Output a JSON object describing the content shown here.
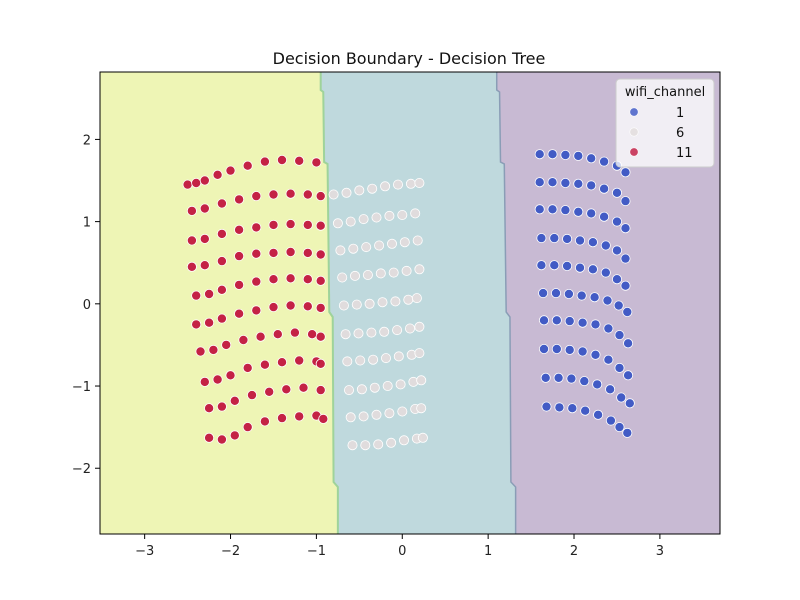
{
  "chart_data": {
    "type": "scatter",
    "title": "Decision Boundary - Decision Tree",
    "xlabel": "",
    "ylabel": "",
    "xlim": [
      -3.52,
      3.7
    ],
    "ylim": [
      -2.8,
      2.82
    ],
    "xticks": [
      -3,
      -2,
      -1,
      0,
      1,
      2,
      3
    ],
    "yticks": [
      -2,
      -1,
      0,
      1,
      2
    ],
    "xtick_labels": [
      "−3",
      "−2",
      "−1",
      "0",
      "1",
      "2",
      "3"
    ],
    "ytick_labels": [
      "−2",
      "−1",
      "0",
      "1",
      "2"
    ],
    "grid": false,
    "legend": {
      "title": "wifi_channel",
      "placement": "top-right",
      "entries": [
        "1",
        "6",
        "11"
      ]
    },
    "decision_regions": [
      {
        "class": "11",
        "color": "#eef5b5",
        "x_from": -3.52,
        "boundary_x_top": -0.95,
        "boundary_x_bottom": -0.75
      },
      {
        "class": "6",
        "color": "#bfd9dd",
        "boundary_x_top": 1.1,
        "boundary_x_bottom": 1.32
      },
      {
        "class": "1",
        "color": "#c8bad3",
        "x_to": 3.7
      }
    ],
    "series": [
      {
        "name": "11",
        "color": "#c1163f",
        "points": [
          [
            -2.5,
            1.45
          ],
          [
            -2.4,
            1.47
          ],
          [
            -2.3,
            1.5
          ],
          [
            -2.15,
            1.57
          ],
          [
            -2.0,
            1.62
          ],
          [
            -1.8,
            1.68
          ],
          [
            -1.6,
            1.73
          ],
          [
            -1.4,
            1.75
          ],
          [
            -1.2,
            1.74
          ],
          [
            -1.0,
            1.72
          ],
          [
            -2.45,
            1.13
          ],
          [
            -2.3,
            1.16
          ],
          [
            -2.1,
            1.22
          ],
          [
            -1.9,
            1.27
          ],
          [
            -1.7,
            1.31
          ],
          [
            -1.5,
            1.33
          ],
          [
            -1.3,
            1.34
          ],
          [
            -1.1,
            1.33
          ],
          [
            -0.95,
            1.31
          ],
          [
            -2.45,
            0.77
          ],
          [
            -2.3,
            0.79
          ],
          [
            -2.1,
            0.85
          ],
          [
            -1.9,
            0.9
          ],
          [
            -1.7,
            0.93
          ],
          [
            -1.5,
            0.96
          ],
          [
            -1.3,
            0.97
          ],
          [
            -1.1,
            0.96
          ],
          [
            -0.95,
            0.95
          ],
          [
            -2.45,
            0.45
          ],
          [
            -2.3,
            0.47
          ],
          [
            -2.1,
            0.52
          ],
          [
            -1.9,
            0.58
          ],
          [
            -1.7,
            0.61
          ],
          [
            -1.5,
            0.62
          ],
          [
            -1.3,
            0.63
          ],
          [
            -1.1,
            0.62
          ],
          [
            -0.95,
            0.6
          ],
          [
            -2.4,
            0.1
          ],
          [
            -2.25,
            0.12
          ],
          [
            -2.1,
            0.17
          ],
          [
            -1.9,
            0.23
          ],
          [
            -1.7,
            0.27
          ],
          [
            -1.5,
            0.3
          ],
          [
            -1.3,
            0.31
          ],
          [
            -1.1,
            0.3
          ],
          [
            -0.95,
            0.28
          ],
          [
            -2.4,
            -0.25
          ],
          [
            -2.25,
            -0.23
          ],
          [
            -2.1,
            -0.18
          ],
          [
            -1.9,
            -0.12
          ],
          [
            -1.7,
            -0.08
          ],
          [
            -1.5,
            -0.04
          ],
          [
            -1.3,
            -0.02
          ],
          [
            -1.1,
            -0.03
          ],
          [
            -0.95,
            -0.05
          ],
          [
            -2.35,
            -0.58
          ],
          [
            -2.2,
            -0.56
          ],
          [
            -2.05,
            -0.5
          ],
          [
            -1.85,
            -0.44
          ],
          [
            -1.65,
            -0.4
          ],
          [
            -1.45,
            -0.37
          ],
          [
            -1.25,
            -0.35
          ],
          [
            -1.05,
            -0.37
          ],
          [
            -0.95,
            -0.4
          ],
          [
            -2.3,
            -0.95
          ],
          [
            -2.15,
            -0.92
          ],
          [
            -2.0,
            -0.87
          ],
          [
            -1.8,
            -0.78
          ],
          [
            -1.6,
            -0.74
          ],
          [
            -1.4,
            -0.71
          ],
          [
            -1.2,
            -0.69
          ],
          [
            -1.0,
            -0.7
          ],
          [
            -0.95,
            -0.73
          ],
          [
            -2.25,
            -1.27
          ],
          [
            -2.1,
            -1.25
          ],
          [
            -1.95,
            -1.18
          ],
          [
            -1.75,
            -1.11
          ],
          [
            -1.55,
            -1.07
          ],
          [
            -1.35,
            -1.04
          ],
          [
            -1.15,
            -1.02
          ],
          [
            -0.95,
            -1.05
          ],
          [
            -2.25,
            -1.63
          ],
          [
            -2.1,
            -1.65
          ],
          [
            -1.95,
            -1.6
          ],
          [
            -1.8,
            -1.5
          ],
          [
            -1.6,
            -1.43
          ],
          [
            -1.4,
            -1.39
          ],
          [
            -1.2,
            -1.37
          ],
          [
            -1.0,
            -1.36
          ],
          [
            -0.92,
            -1.4
          ]
        ]
      },
      {
        "name": "6",
        "color": "#e2dcdc",
        "points": [
          [
            -0.8,
            1.33
          ],
          [
            -0.65,
            1.35
          ],
          [
            -0.5,
            1.38
          ],
          [
            -0.35,
            1.4
          ],
          [
            -0.2,
            1.43
          ],
          [
            -0.05,
            1.45
          ],
          [
            0.1,
            1.46
          ],
          [
            0.2,
            1.47
          ],
          [
            -0.75,
            0.98
          ],
          [
            -0.6,
            1.0
          ],
          [
            -0.45,
            1.03
          ],
          [
            -0.3,
            1.05
          ],
          [
            -0.15,
            1.07
          ],
          [
            0.0,
            1.08
          ],
          [
            0.15,
            1.1
          ],
          [
            -0.72,
            0.65
          ],
          [
            -0.57,
            0.67
          ],
          [
            -0.42,
            0.69
          ],
          [
            -0.27,
            0.71
          ],
          [
            -0.12,
            0.73
          ],
          [
            0.03,
            0.75
          ],
          [
            0.18,
            0.77
          ],
          [
            -0.7,
            0.32
          ],
          [
            -0.55,
            0.34
          ],
          [
            -0.4,
            0.35
          ],
          [
            -0.25,
            0.37
          ],
          [
            -0.1,
            0.38
          ],
          [
            0.05,
            0.4
          ],
          [
            0.2,
            0.42
          ],
          [
            -0.68,
            -0.02
          ],
          [
            -0.53,
            -0.01
          ],
          [
            -0.38,
            0.0
          ],
          [
            -0.23,
            0.02
          ],
          [
            -0.08,
            0.03
          ],
          [
            0.07,
            0.05
          ],
          [
            0.17,
            0.07
          ],
          [
            -0.66,
            -0.37
          ],
          [
            -0.51,
            -0.36
          ],
          [
            -0.36,
            -0.35
          ],
          [
            -0.21,
            -0.34
          ],
          [
            -0.06,
            -0.32
          ],
          [
            0.09,
            -0.3
          ],
          [
            0.2,
            -0.28
          ],
          [
            -0.64,
            -0.7
          ],
          [
            -0.49,
            -0.69
          ],
          [
            -0.34,
            -0.68
          ],
          [
            -0.19,
            -0.66
          ],
          [
            -0.04,
            -0.64
          ],
          [
            0.11,
            -0.62
          ],
          [
            0.2,
            -0.6
          ],
          [
            -0.62,
            -1.05
          ],
          [
            -0.47,
            -1.04
          ],
          [
            -0.32,
            -1.02
          ],
          [
            -0.17,
            -1.0
          ],
          [
            -0.02,
            -0.98
          ],
          [
            0.13,
            -0.95
          ],
          [
            0.22,
            -0.93
          ],
          [
            -0.6,
            -1.38
          ],
          [
            -0.45,
            -1.37
          ],
          [
            -0.3,
            -1.35
          ],
          [
            -0.15,
            -1.33
          ],
          [
            0.0,
            -1.31
          ],
          [
            0.15,
            -1.28
          ],
          [
            0.22,
            -1.27
          ],
          [
            -0.58,
            -1.72
          ],
          [
            -0.43,
            -1.72
          ],
          [
            -0.28,
            -1.71
          ],
          [
            -0.13,
            -1.69
          ],
          [
            0.02,
            -1.66
          ],
          [
            0.17,
            -1.64
          ],
          [
            0.24,
            -1.63
          ]
        ]
      },
      {
        "name": "1",
        "color": "#3b55c4",
        "points": [
          [
            1.6,
            1.82
          ],
          [
            1.75,
            1.82
          ],
          [
            1.9,
            1.81
          ],
          [
            2.05,
            1.8
          ],
          [
            2.2,
            1.77
          ],
          [
            2.35,
            1.73
          ],
          [
            2.5,
            1.68
          ],
          [
            2.6,
            1.6
          ],
          [
            1.6,
            1.48
          ],
          [
            1.75,
            1.48
          ],
          [
            1.9,
            1.47
          ],
          [
            2.05,
            1.46
          ],
          [
            2.2,
            1.44
          ],
          [
            2.35,
            1.4
          ],
          [
            2.5,
            1.35
          ],
          [
            2.6,
            1.25
          ],
          [
            1.6,
            1.15
          ],
          [
            1.75,
            1.15
          ],
          [
            1.9,
            1.14
          ],
          [
            2.05,
            1.12
          ],
          [
            2.2,
            1.1
          ],
          [
            2.35,
            1.06
          ],
          [
            2.5,
            1.0
          ],
          [
            2.6,
            0.92
          ],
          [
            1.62,
            0.8
          ],
          [
            1.77,
            0.8
          ],
          [
            1.92,
            0.79
          ],
          [
            2.07,
            0.77
          ],
          [
            2.22,
            0.75
          ],
          [
            2.37,
            0.71
          ],
          [
            2.5,
            0.65
          ],
          [
            2.6,
            0.55
          ],
          [
            1.62,
            0.47
          ],
          [
            1.77,
            0.47
          ],
          [
            1.92,
            0.46
          ],
          [
            2.07,
            0.44
          ],
          [
            2.22,
            0.42
          ],
          [
            2.37,
            0.38
          ],
          [
            2.5,
            0.3
          ],
          [
            2.6,
            0.22
          ],
          [
            1.64,
            0.13
          ],
          [
            1.79,
            0.13
          ],
          [
            1.94,
            0.12
          ],
          [
            2.09,
            0.1
          ],
          [
            2.24,
            0.08
          ],
          [
            2.39,
            0.04
          ],
          [
            2.52,
            -0.02
          ],
          [
            2.62,
            -0.1
          ],
          [
            1.65,
            -0.2
          ],
          [
            1.8,
            -0.2
          ],
          [
            1.95,
            -0.21
          ],
          [
            2.1,
            -0.23
          ],
          [
            2.25,
            -0.25
          ],
          [
            2.4,
            -0.3
          ],
          [
            2.53,
            -0.38
          ],
          [
            2.63,
            -0.48
          ],
          [
            1.65,
            -0.55
          ],
          [
            1.8,
            -0.55
          ],
          [
            1.95,
            -0.56
          ],
          [
            2.1,
            -0.58
          ],
          [
            2.25,
            -0.62
          ],
          [
            2.4,
            -0.68
          ],
          [
            2.53,
            -0.78
          ],
          [
            2.63,
            -0.87
          ],
          [
            1.67,
            -0.9
          ],
          [
            1.82,
            -0.9
          ],
          [
            1.97,
            -0.91
          ],
          [
            2.12,
            -0.94
          ],
          [
            2.27,
            -0.98
          ],
          [
            2.42,
            -1.04
          ],
          [
            2.55,
            -1.14
          ],
          [
            2.65,
            -1.21
          ],
          [
            1.68,
            -1.25
          ],
          [
            1.83,
            -1.26
          ],
          [
            1.98,
            -1.27
          ],
          [
            2.13,
            -1.3
          ],
          [
            2.28,
            -1.35
          ],
          [
            2.43,
            -1.42
          ],
          [
            2.53,
            -1.5
          ],
          [
            2.62,
            -1.57
          ]
        ]
      }
    ]
  }
}
